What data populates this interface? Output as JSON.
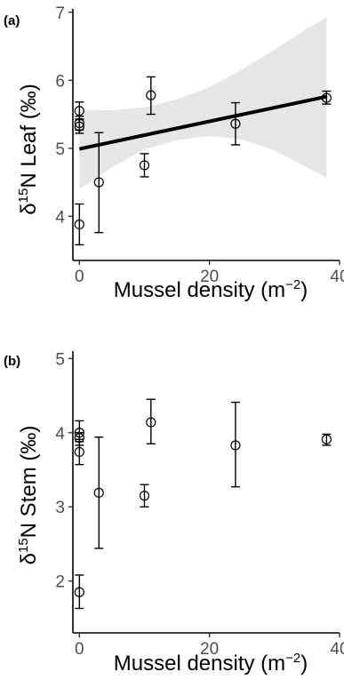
{
  "chart_data": [
    {
      "type": "scatter",
      "panel_label": "(a)",
      "xlabel": "Mussel density (m−2)",
      "ylabel": "δ15N Leaf (‰)",
      "xlabel_main": "Mussel density (m",
      "xlabel_sup": "−2",
      "xlabel_close": ")",
      "ylabel_delta": "δ",
      "ylabel_sup": "15",
      "ylabel_main": "N Leaf (‰)",
      "xlim": [
        -1,
        40
      ],
      "ylim": [
        3.35,
        7.05
      ],
      "x_ticks": [
        0,
        20,
        40
      ],
      "x_tick_labels": [
        "0",
        "20",
        "40"
      ],
      "y_ticks": [
        4,
        5,
        6,
        7
      ],
      "y_tick_labels": [
        "4",
        "5",
        "6",
        "7"
      ],
      "points": [
        {
          "x": 0,
          "y": 3.88,
          "lo": 3.58,
          "hi": 4.18
        },
        {
          "x": 0,
          "y": 5.32,
          "lo": 5.22,
          "hi": 5.42
        },
        {
          "x": 0,
          "y": 5.37,
          "lo": 5.27,
          "hi": 5.47
        },
        {
          "x": 0,
          "y": 5.55,
          "lo": 5.43,
          "hi": 5.68
        },
        {
          "x": 3,
          "y": 4.5,
          "lo": 3.76,
          "hi": 5.23
        },
        {
          "x": 10,
          "y": 4.75,
          "lo": 4.58,
          "hi": 4.92
        },
        {
          "x": 11,
          "y": 5.78,
          "lo": 5.5,
          "hi": 6.05
        },
        {
          "x": 24,
          "y": 5.36,
          "lo": 5.05,
          "hi": 5.67
        },
        {
          "x": 38,
          "y": 5.74,
          "lo": 5.65,
          "hi": 5.84
        }
      ],
      "fit_line": {
        "x": [
          0,
          38
        ],
        "y": [
          4.99,
          5.76
        ]
      },
      "confidence_band": {
        "x": [
          0,
          5,
          10,
          15,
          20,
          25,
          30,
          35,
          38
        ],
        "lo": [
          4.4,
          4.72,
          4.98,
          5.12,
          5.18,
          5.13,
          4.97,
          4.72,
          4.57
        ],
        "hi": [
          5.57,
          5.56,
          5.6,
          5.72,
          5.9,
          6.16,
          6.45,
          6.76,
          6.93
        ]
      },
      "colors": {
        "band": "#e6e6e6",
        "line": "#000000",
        "points": "#000000"
      }
    },
    {
      "type": "scatter",
      "panel_label": "(b)",
      "xlabel": "Mussel density (m−2)",
      "ylabel": "δ15N Stem (‰)",
      "xlabel_main": "Mussel density (m",
      "xlabel_sup": "−2",
      "xlabel_close": ")",
      "ylabel_delta": "δ",
      "ylabel_sup": "15",
      "ylabel_main": "N Stem (‰)",
      "xlim": [
        -1,
        40
      ],
      "ylim": [
        1.3,
        5.1
      ],
      "x_ticks": [
        0,
        20,
        40
      ],
      "x_tick_labels": [
        "0",
        "20",
        "40"
      ],
      "y_ticks": [
        2,
        3,
        4,
        5
      ],
      "y_tick_labels": [
        "2",
        "3",
        "4",
        "5"
      ],
      "points": [
        {
          "x": 0,
          "y": 1.85,
          "lo": 1.63,
          "hi": 2.08
        },
        {
          "x": 0,
          "y": 3.74,
          "lo": 3.57,
          "hi": 3.91
        },
        {
          "x": 0,
          "y": 3.93,
          "lo": 3.88,
          "hi": 4.0
        },
        {
          "x": 0,
          "y": 4.0,
          "lo": 3.83,
          "hi": 4.16
        },
        {
          "x": 3,
          "y": 3.19,
          "lo": 2.44,
          "hi": 3.94
        },
        {
          "x": 10,
          "y": 3.15,
          "lo": 3.0,
          "hi": 3.3
        },
        {
          "x": 11,
          "y": 4.14,
          "lo": 3.85,
          "hi": 4.45
        },
        {
          "x": 24,
          "y": 3.83,
          "lo": 3.27,
          "hi": 4.41
        },
        {
          "x": 38,
          "y": 3.91,
          "lo": 3.83,
          "hi": 3.98
        }
      ],
      "colors": {
        "points": "#000000"
      }
    }
  ]
}
